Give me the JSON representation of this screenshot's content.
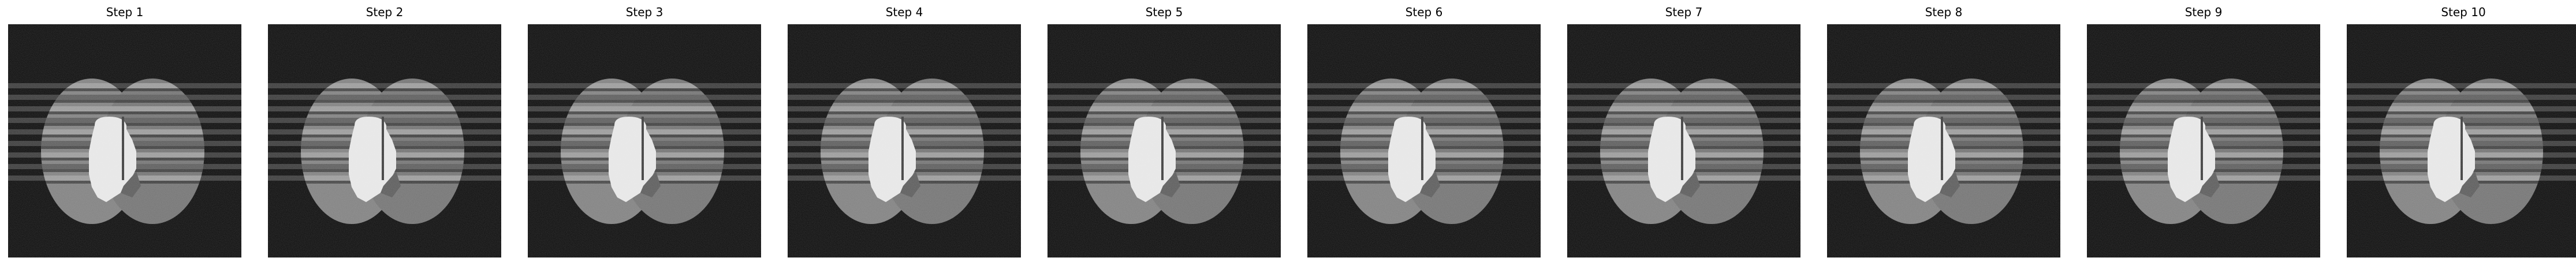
{
  "figure": {
    "panels": [
      {
        "title": "Step 1"
      },
      {
        "title": "Step 2"
      },
      {
        "title": "Step 3"
      },
      {
        "title": "Step 4"
      },
      {
        "title": "Step 5"
      },
      {
        "title": "Step 6"
      },
      {
        "title": "Step 7"
      },
      {
        "title": "Step 8"
      },
      {
        "title": "Step 9"
      },
      {
        "title": "Step 10"
      }
    ]
  },
  "colors": {
    "background": "#0a0a0a",
    "ellipse": "#7f7f7f",
    "inner_bright": "#e6e6e6",
    "stripe_light": "#9a9a9a",
    "stripe_dark": "#1e1e1e"
  }
}
